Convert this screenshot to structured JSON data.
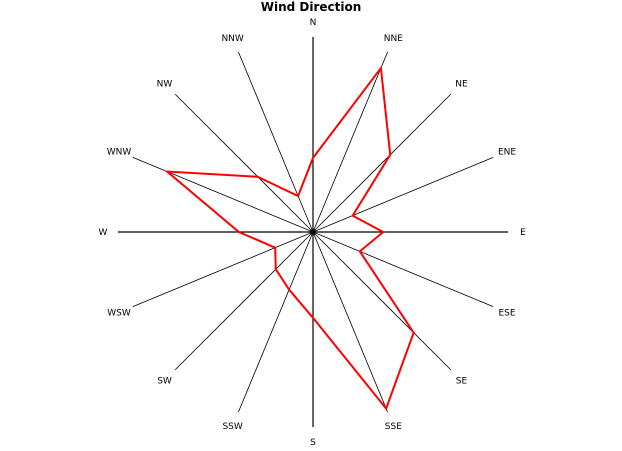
{
  "chart_data": {
    "type": "radar",
    "title": "Wind Direction",
    "categories": [
      "N",
      "NNE",
      "NE",
      "ENE",
      "E",
      "ESE",
      "SE",
      "SSE",
      "S",
      "SSW",
      "SW",
      "WSW",
      "W",
      "WNW",
      "NW",
      "NNW"
    ],
    "values": [
      0.38,
      0.91,
      0.56,
      0.22,
      0.36,
      0.26,
      0.73,
      0.98,
      0.44,
      0.32,
      0.27,
      0.21,
      0.38,
      0.81,
      0.4,
      0.2
    ],
    "rlim": [
      0,
      1
    ],
    "series_color": "#ff0000",
    "axis_color": "#000000",
    "grid": false,
    "legend": "none"
  }
}
